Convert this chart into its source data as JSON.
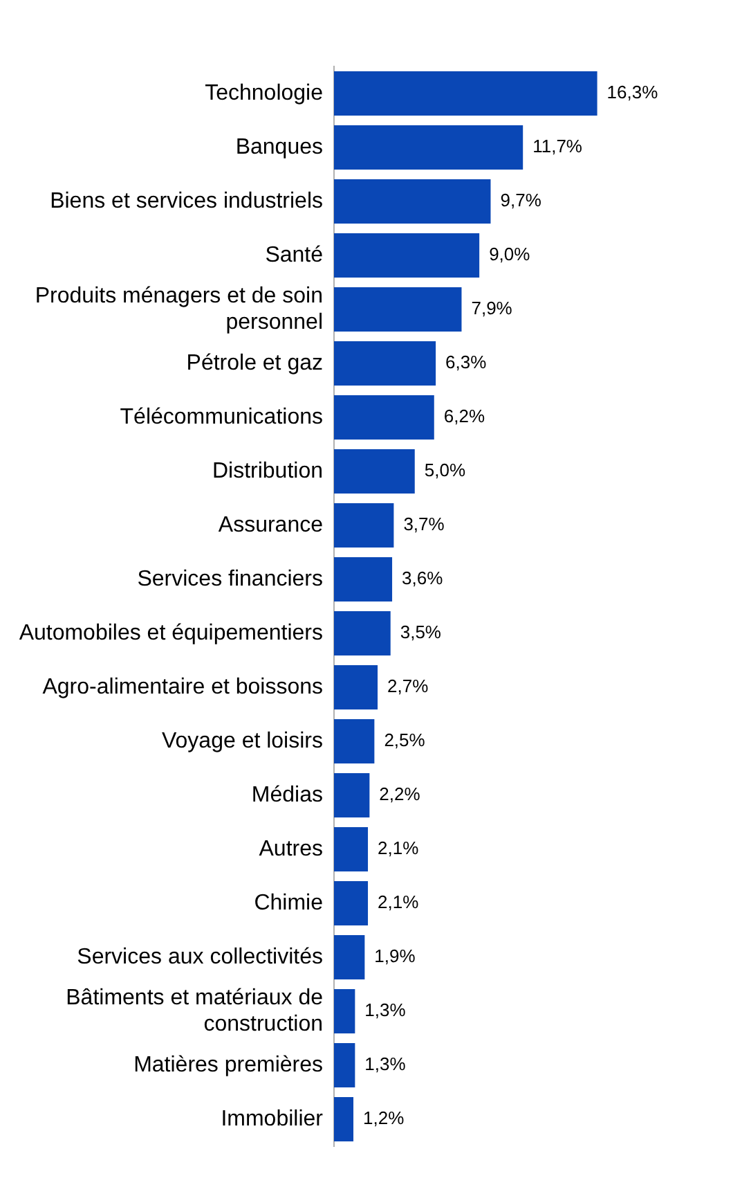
{
  "chart_data": {
    "type": "bar",
    "orientation": "horizontal",
    "categories": [
      "Technologie",
      "Banques",
      "Biens et services industriels",
      "Santé",
      "Produits ménagers et de soin personnel",
      "Pétrole et gaz",
      "Télécommunications",
      "Distribution",
      "Assurance",
      "Services financiers",
      "Automobiles et équipementiers",
      "Agro-alimentaire et boissons",
      "Voyage et loisirs",
      "Médias",
      "Autres",
      "Chimie",
      "Services aux collectivités",
      "Bâtiments et matériaux de construction",
      "Matières premières",
      "Immobilier"
    ],
    "values": [
      16.3,
      11.7,
      9.7,
      9.0,
      7.9,
      6.3,
      6.2,
      5.0,
      3.7,
      3.6,
      3.5,
      2.7,
      2.5,
      2.2,
      2.1,
      2.1,
      1.9,
      1.3,
      1.3,
      1.2
    ],
    "value_labels": [
      "16,3%",
      "11,7%",
      "9,7%",
      "9,0%",
      "7,9%",
      "6,3%",
      "6,2%",
      "5,0%",
      "3,7%",
      "3,6%",
      "3,5%",
      "2,7%",
      "2,5%",
      "2,2%",
      "2,1%",
      "2,1%",
      "1,9%",
      "1,3%",
      "1,3%",
      "1,2%"
    ],
    "color": "#0a47b5",
    "grid": false,
    "legend": false
  }
}
